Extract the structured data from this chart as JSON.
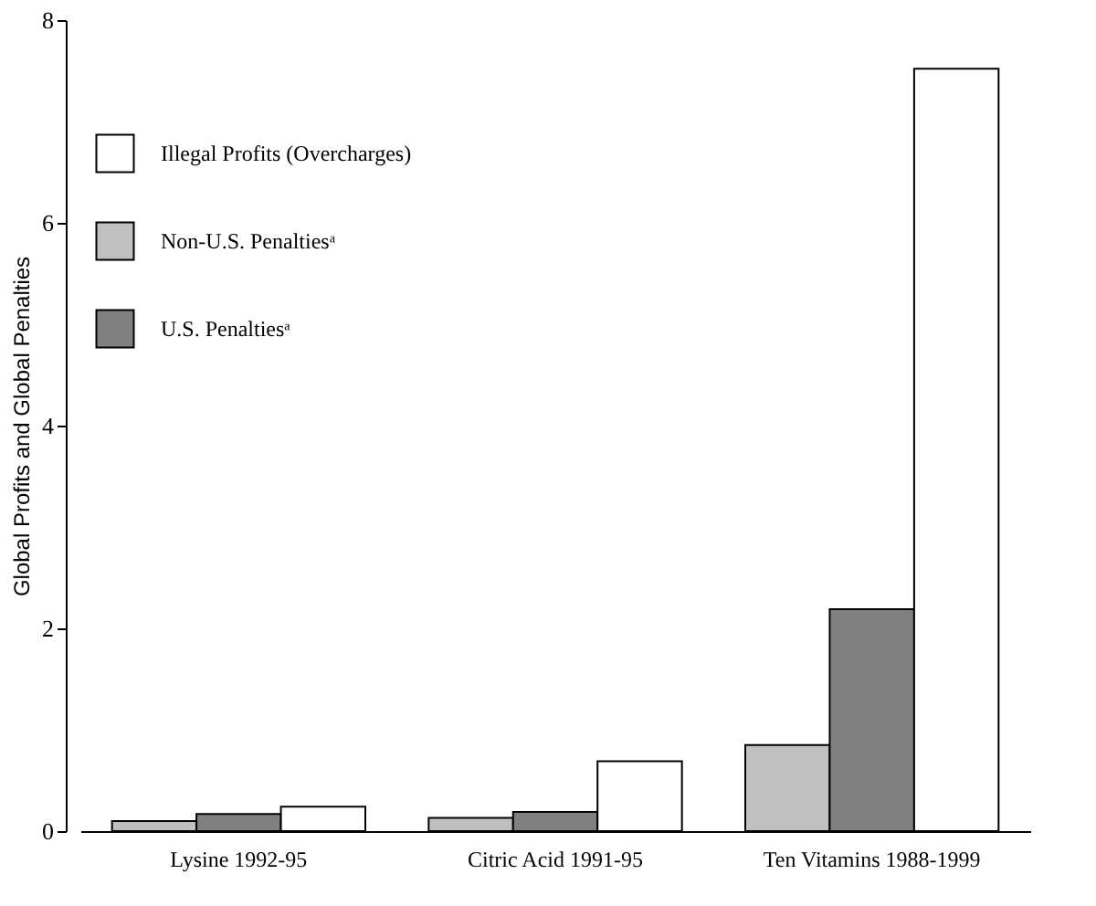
{
  "chart_data": {
    "type": "bar",
    "ylabel": "Global Profits and Global Penalties",
    "categories": [
      "Lysine 1992-95",
      "Citric Acid 1991-95",
      "Ten Vitamins 1988-1999"
    ],
    "series": [
      {
        "name": "Non-U.S. Penaltiesᵃ",
        "color": "#c0c0c0",
        "values": [
          0.1,
          0.13,
          0.85
        ]
      },
      {
        "name": "U.S. Penaltiesᵃ",
        "color": "#808080",
        "values": [
          0.17,
          0.19,
          2.19
        ]
      },
      {
        "name": "Illegal Profits (Overcharges)",
        "color": "#ffffff",
        "values": [
          0.24,
          0.69,
          7.52
        ]
      }
    ],
    "ylim": [
      0,
      8
    ],
    "yticks": [
      0,
      2,
      4,
      6,
      8
    ],
    "grid": false,
    "legend": "top left"
  }
}
